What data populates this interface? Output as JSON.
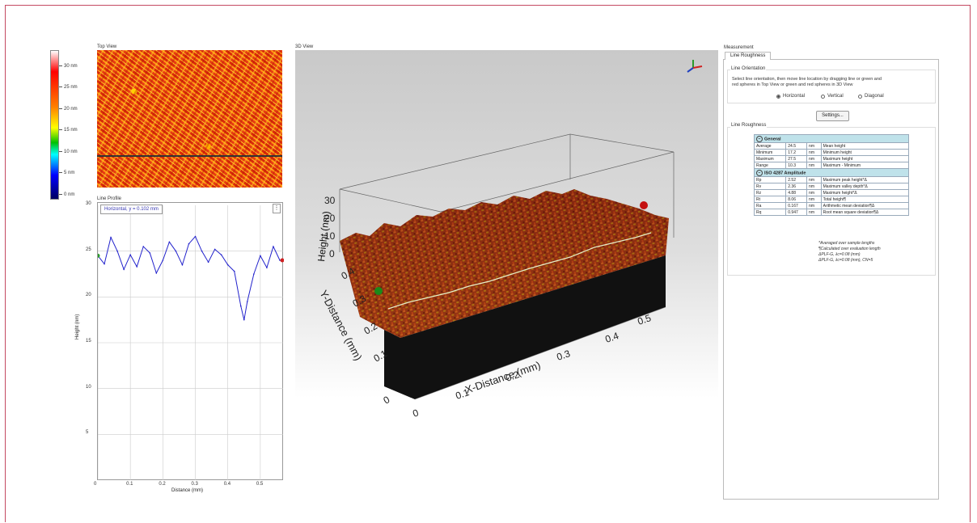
{
  "top_view": {
    "title": "Top View",
    "colorbar_ticks": [
      "30 nm",
      "25 nm",
      "20 nm",
      "15 nm",
      "10 nm",
      "5 nm",
      "0 nm"
    ]
  },
  "line_profile": {
    "title": "Line Profile",
    "line_label": "Horizontal, y = 0.102 mm",
    "menu_glyph": "⋮",
    "xlabel": "Distance (mm)",
    "ylabel": "Height (nm)",
    "x_ticks": [
      "0",
      "0.1",
      "0.2",
      "0.3",
      "0.4",
      "0.5"
    ],
    "y_ticks": [
      "30",
      "25",
      "20",
      "15",
      "10",
      "5"
    ]
  },
  "chart_data": {
    "type": "line",
    "x": [
      0,
      0.02,
      0.04,
      0.06,
      0.08,
      0.1,
      0.12,
      0.14,
      0.16,
      0.18,
      0.2,
      0.22,
      0.24,
      0.26,
      0.28,
      0.3,
      0.32,
      0.34,
      0.36,
      0.38,
      0.4,
      0.42,
      0.44,
      0.45,
      0.46,
      0.48,
      0.5,
      0.52,
      0.54,
      0.56
    ],
    "y": [
      24.5,
      23.6,
      26.5,
      25.0,
      23.0,
      24.6,
      23.3,
      25.5,
      24.8,
      22.6,
      24.0,
      26.0,
      25.0,
      23.5,
      25.8,
      26.6,
      25.0,
      23.8,
      25.2,
      24.6,
      23.5,
      22.8,
      19.0,
      17.5,
      19.5,
      22.5,
      24.5,
      23.2,
      25.5,
      24.0
    ],
    "xlim": [
      0,
      0.57
    ],
    "ylim": [
      0,
      30
    ],
    "xlabel": "Distance (mm)",
    "ylabel": "Height (nm)",
    "grid": true
  },
  "view_3d": {
    "title": "3D View",
    "axis_z_label": "Height (nm)",
    "axis_y_label": "Y-Distance (mm)",
    "axis_x_label": "X-Distance (mm)",
    "z_ticks": [
      "30",
      "20",
      "10",
      "0"
    ],
    "y_ticks": [
      "0.4",
      "0.3",
      "0.2",
      "0.1",
      "0"
    ],
    "x_ticks": [
      "0",
      "0.1",
      "0.2",
      "0.3",
      "0.4",
      "0.5"
    ]
  },
  "measure": {
    "panel_title": "Measurement",
    "tab": "Line Roughness",
    "orientation_group": "Line Orientation",
    "orientation_help": [
      "Select line orientation, then move line location by dragging line or green and",
      "red spheres in Top View or green and red spheres in 3D View"
    ],
    "radios": [
      "Horizontal",
      "Vertical",
      "Diagonal"
    ],
    "selected_radio": "Horizontal",
    "settings_label": "Settings...",
    "roughness_group": "Line Roughness",
    "general_header": "General",
    "general_rows": [
      {
        "name": "Average",
        "value": "24.5",
        "unit": "nm",
        "desc": "Mean height"
      },
      {
        "name": "Minimum",
        "value": "17.2",
        "unit": "nm",
        "desc": "Minimum height"
      },
      {
        "name": "Maximum",
        "value": "27.5",
        "unit": "nm",
        "desc": "Maximum height"
      },
      {
        "name": "Range",
        "value": "10.3",
        "unit": "nm",
        "desc": "Maximum - Minimum"
      }
    ],
    "iso_header": "ISO 4287 Amplitude",
    "iso_rows": [
      {
        "name": "Rp",
        "value": "2.52",
        "unit": "nm",
        "desc": "Maximum peak height*Δ"
      },
      {
        "name": "Rv",
        "value": "2.36",
        "unit": "nm",
        "desc": "Maximum valley depth*Δ"
      },
      {
        "name": "Rz",
        "value": "4.88",
        "unit": "nm",
        "desc": "Maximum height*Δ"
      },
      {
        "name": "Rt",
        "value": "8.06",
        "unit": "nm",
        "desc": "Total height¶"
      },
      {
        "name": "Ra",
        "value": "0.167",
        "unit": "nm",
        "desc": "Arithmetic mean deviation¶Δ"
      },
      {
        "name": "Rq",
        "value": "0.947",
        "unit": "nm",
        "desc": "Root mean square deviation¶Δ"
      }
    ],
    "footnotes": [
      "*Averaged over sample lengths",
      "¶Calculated over evaluation length",
      "ΔPLF-G, λc=0.08 (mm)",
      "ΔPLF-G, λc=0.08 (mm), CN=5"
    ]
  }
}
